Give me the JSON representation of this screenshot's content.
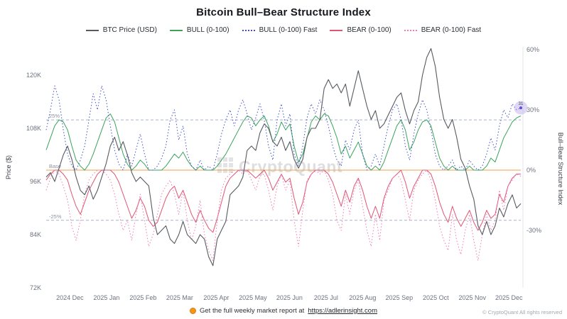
{
  "title": "Bitcoin Bull–Bear Structure Index",
  "watermark": "CryptoQuant",
  "footer": {
    "prefix": "Get the full weekly market report at",
    "link": "https://adlerinsight.com"
  },
  "copyright": "© CryptoQuant  All rights reserved",
  "chart_data": {
    "type": "line",
    "x_ticks": [
      "2024 Dec",
      "2025 Jan",
      "2025 Feb",
      "2025 Mar",
      "2025 Apr",
      "2025 May",
      "2025 Jun",
      "2025 Jul",
      "2025 Aug",
      "2025 Sep",
      "2025 Oct",
      "2025 Nov",
      "2025 Dec"
    ],
    "left_axis": {
      "label": "Price ($)",
      "min": 72,
      "max": 126.4,
      "ticks": [
        [
          "120K",
          120
        ],
        [
          "108K",
          108
        ],
        [
          "96K",
          96
        ],
        [
          "84K",
          84
        ],
        [
          "72K",
          72
        ]
      ]
    },
    "right_axis": {
      "label": "Bull–Bear Structure Index",
      "min": -58.6,
      "max": 61.4,
      "ticks": [
        [
          "60%",
          60
        ],
        [
          "30%",
          30
        ],
        [
          "0%",
          0
        ],
        [
          "-30%",
          -30
        ]
      ]
    },
    "reference_lines": [
      {
        "label": "25%",
        "value": 25,
        "style": "dashed",
        "color": "#a9b4c9"
      },
      {
        "label": "Base",
        "value": 0,
        "style": "solid",
        "color": "#f0a14e"
      },
      {
        "label": "-25%",
        "value": -25,
        "style": "dashed",
        "color": "#a9b4c9"
      }
    ],
    "series": [
      {
        "name": "BTC Price (USD)",
        "axis": "left",
        "color": "#565b61",
        "style": "solid",
        "width": 1.1,
        "values": [
          97,
          98,
          96,
          99,
          102,
          104,
          101,
          97,
          94,
          93,
          95,
          92,
          94,
          97,
          100,
          104,
          106,
          103,
          105,
          102,
          98,
          96,
          97,
          96,
          95,
          88,
          84,
          85,
          86,
          83,
          82,
          84,
          87,
          84,
          83,
          82,
          84,
          83,
          79,
          77,
          83,
          85,
          87,
          93,
          94,
          95,
          97,
          103,
          104,
          103,
          107,
          109,
          108,
          105,
          104,
          106,
          103,
          105,
          101,
          99,
          101,
          106,
          108,
          108,
          110,
          117,
          119,
          117,
          118,
          116,
          118,
          113,
          117,
          121,
          117,
          113,
          110,
          112,
          108,
          109,
          111,
          113,
          115,
          116,
          112,
          109,
          112,
          114,
          120,
          124,
          126,
          122,
          115,
          110,
          108,
          110,
          106,
          101,
          99,
          95,
          92,
          86,
          84,
          87,
          84,
          86,
          90,
          88,
          91,
          93,
          90,
          91
        ]
      },
      {
        "name": "BULL (0-100)",
        "axis": "right",
        "color": "#3aa35c",
        "style": "solid",
        "width": 1,
        "values": [
          10,
          16,
          22,
          25,
          24,
          20,
          12,
          5,
          2,
          0,
          3,
          8,
          14,
          20,
          26,
          28,
          24,
          16,
          8,
          3,
          0,
          2,
          5,
          3,
          0,
          0,
          0,
          0,
          2,
          5,
          8,
          6,
          9,
          5,
          2,
          0,
          2,
          0,
          0,
          0,
          2,
          5,
          8,
          12,
          16,
          20,
          24,
          27,
          26,
          22,
          25,
          27,
          22,
          14,
          18,
          24,
          20,
          23,
          12,
          4,
          8,
          16,
          24,
          27,
          25,
          28,
          27,
          22,
          16,
          8,
          12,
          6,
          10,
          14,
          8,
          2,
          0,
          2,
          0,
          4,
          10,
          16,
          22,
          25,
          20,
          10,
          14,
          20,
          24,
          25,
          22,
          14,
          6,
          2,
          0,
          2,
          0,
          0,
          0,
          2,
          0,
          0,
          0,
          2,
          6,
          4,
          10,
          16,
          20,
          24,
          26,
          27
        ]
      },
      {
        "name": "BULL (0-100) Fast",
        "axis": "right",
        "color": "#4150c8",
        "style": "dotted",
        "width": 1,
        "values": [
          20,
          30,
          42,
          35,
          20,
          8,
          2,
          0,
          5,
          12,
          25,
          38,
          30,
          42,
          35,
          22,
          10,
          3,
          0,
          8,
          2,
          10,
          18,
          8,
          0,
          0,
          2,
          6,
          12,
          25,
          30,
          15,
          22,
          8,
          2,
          0,
          5,
          0,
          2,
          0,
          8,
          18,
          25,
          30,
          22,
          30,
          35,
          28,
          20,
          26,
          33,
          25,
          12,
          5,
          25,
          33,
          22,
          28,
          8,
          2,
          12,
          26,
          33,
          28,
          35,
          30,
          22,
          12,
          5,
          2,
          15,
          10,
          20,
          25,
          8,
          0,
          2,
          8,
          2,
          12,
          22,
          30,
          33,
          25,
          12,
          5,
          18,
          28,
          35,
          30,
          20,
          8,
          2,
          0,
          2,
          5,
          0,
          2,
          0,
          5,
          2,
          0,
          2,
          8,
          16,
          10,
          22,
          30,
          26,
          33,
          30,
          31
        ]
      },
      {
        "name": "BEAR (0-100)",
        "axis": "right",
        "color": "#e05572",
        "style": "solid",
        "width": 1,
        "values": [
          -5,
          -2,
          0,
          0,
          -2,
          -5,
          -12,
          -18,
          -22,
          -16,
          -10,
          -6,
          -2,
          0,
          0,
          0,
          -2,
          -6,
          -12,
          -18,
          -24,
          -20,
          -14,
          -18,
          -25,
          -28,
          -26,
          -20,
          -14,
          -10,
          -8,
          -14,
          -10,
          -16,
          -22,
          -26,
          -20,
          -25,
          -29,
          -31,
          -24,
          -16,
          -8,
          -4,
          -2,
          0,
          0,
          0,
          -2,
          -4,
          -2,
          0,
          -4,
          -10,
          -6,
          -2,
          -6,
          -4,
          -14,
          -22,
          -16,
          -6,
          -2,
          0,
          0,
          0,
          -2,
          -6,
          -12,
          -18,
          -10,
          -16,
          -8,
          -4,
          -10,
          -18,
          -24,
          -18,
          -24,
          -14,
          -8,
          -4,
          -2,
          0,
          -6,
          -14,
          -8,
          -4,
          0,
          0,
          -2,
          -8,
          -16,
          -22,
          -26,
          -18,
          -24,
          -28,
          -24,
          -20,
          -26,
          -30,
          -26,
          -20,
          -24,
          -22,
          -12,
          -16,
          -8,
          -4,
          -2,
          -2
        ]
      },
      {
        "name": "BEAR (0-100) Fast",
        "axis": "right",
        "color": "#ee7cb4",
        "style": "dotted",
        "width": 1,
        "values": [
          -10,
          -4,
          0,
          -2,
          -8,
          -15,
          -28,
          -35,
          -25,
          -12,
          -5,
          -2,
          0,
          0,
          -2,
          -5,
          -12,
          -22,
          -30,
          -25,
          -35,
          -22,
          -12,
          -25,
          -38,
          -32,
          -22,
          -12,
          -8,
          -5,
          -12,
          -22,
          -10,
          -25,
          -35,
          -28,
          -15,
          -32,
          -40,
          -45,
          -25,
          -10,
          -4,
          -2,
          0,
          0,
          -2,
          0,
          -5,
          -10,
          -3,
          -2,
          -10,
          -20,
          -8,
          -2,
          -10,
          -5,
          -25,
          -38,
          -20,
          -5,
          -2,
          0,
          -2,
          0,
          -5,
          -12,
          -25,
          -30,
          -12,
          -22,
          -10,
          -5,
          -18,
          -30,
          -38,
          -22,
          -35,
          -15,
          -10,
          -4,
          -2,
          -5,
          -15,
          -25,
          -10,
          -5,
          -2,
          0,
          -5,
          -15,
          -28,
          -35,
          -40,
          -22,
          -35,
          -42,
          -30,
          -22,
          -35,
          -45,
          -32,
          -22,
          -30,
          -25,
          -10,
          -20,
          -8,
          -5,
          -2,
          -3
        ]
      }
    ],
    "end_marker": {
      "series": "BULL (0-100) Fast",
      "label": "31",
      "halo_color": "#b9a7e8"
    }
  }
}
